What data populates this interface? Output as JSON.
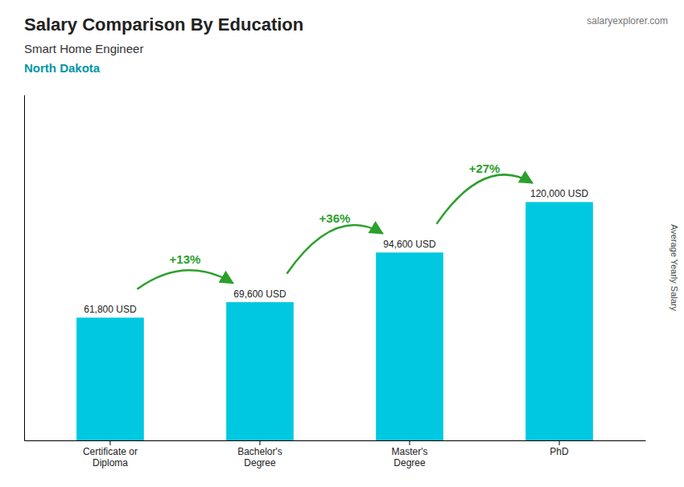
{
  "chart_data": {
    "type": "bar",
    "title": "Salary Comparison By Education",
    "subtitle": [
      "Smart Home Engineer",
      "North Dakota"
    ],
    "source": "salaryexplorer.com",
    "y_label": "Average Yearly Salary",
    "categories": [
      "Certificate or\nDiploma",
      "Bachelor's\nDegree",
      "Master's\nDegree",
      "PhD"
    ],
    "values": [
      61800,
      69600,
      94600,
      120000
    ],
    "value_labels": [
      "61,800 USD",
      "69,600 USD",
      "94,600 USD",
      "120,000 USD"
    ],
    "data_labels": true,
    "annotations": [
      "+13%",
      "+36%",
      "+27%"
    ],
    "color": "#00c8e0",
    "ylim": [
      0,
      174000
    ],
    "tick_labels": "x",
    "grid": false
  }
}
